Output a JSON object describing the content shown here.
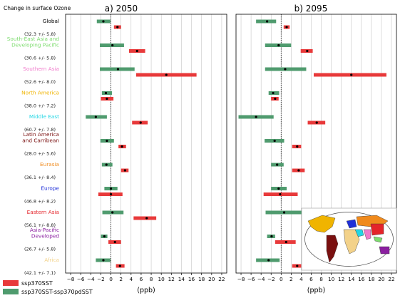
{
  "figure": {
    "header": "Change in surface Ozone",
    "panel_titles": [
      "a) 2050",
      "b) 2095"
    ]
  },
  "colors": {
    "ssp370SST": "#e8393a",
    "diff": "#4f9b6e",
    "zero_line": "#111111",
    "grid": "#bbbbbb"
  },
  "legend": [
    {
      "label": "ssp370SST",
      "color": "#e8393a"
    },
    {
      "label": "ssp370SST-ssp370pdSST",
      "color": "#4f9b6e"
    }
  ],
  "regions": [
    {
      "name": "Global",
      "color": "#000000",
      "baseline": "(32.3 +/- 5.8)"
    },
    {
      "name": "South-East Asia and\nDeveloping Pacific",
      "color": "#7ddc6e",
      "baseline": "(30.6 +/- 5.8)"
    },
    {
      "name": "Southern Asia",
      "color": "#f07acb",
      "baseline": "(52.6 +/- 8.0)"
    },
    {
      "name": "North America",
      "color": "#f0b400",
      "baseline": "(38.0 +/- 7.2)"
    },
    {
      "name": "Middle East",
      "color": "#22d6e4",
      "baseline": "(60.7 +/- 7.8)"
    },
    {
      "name": "Latin America\nand Carribean",
      "color": "#7a1010",
      "baseline": "(28.0 +/- 5.6)"
    },
    {
      "name": "Eurasia",
      "color": "#f08a1c",
      "baseline": "(36.1 +/- 8.4)"
    },
    {
      "name": "Europe",
      "color": "#1f2fd8",
      "baseline": "(46.8 +/- 8.2)"
    },
    {
      "name": "Eastern Asia",
      "color": "#e4242a",
      "baseline": "(56.1 +/- 8.8)"
    },
    {
      "name": "Asia-Pacific\nDeveloped",
      "color": "#8b1fa0",
      "baseline": "(26.7 +/- 5.8)"
    },
    {
      "name": "Africa",
      "color": "#f3d28a",
      "baseline": "(42.1 +/- 7.1)"
    }
  ],
  "chart_data": {
    "type": "errorbar-ranges",
    "xlabel": "(ppb)",
    "xlim": [
      -9,
      23
    ],
    "xticks": [
      -8,
      -6,
      -4,
      -2,
      0,
      2,
      4,
      6,
      8,
      10,
      12,
      14,
      16,
      18,
      20,
      22
    ],
    "panels": [
      {
        "title": "a) 2050",
        "series": [
          {
            "name": "ssp370SST",
            "values": [
              {
                "region": "Global",
                "low": 0.6,
                "mean": 1.3,
                "high": 2.0
              },
              {
                "region": "South-East Asia and Developing Pacific",
                "low": 3.6,
                "mean": 5.2,
                "high": 6.8
              },
              {
                "region": "Southern Asia",
                "low": 5.0,
                "mean": 11.0,
                "high": 17.0
              },
              {
                "region": "North America",
                "low": -2.0,
                "mean": -0.8,
                "high": 0.5
              },
              {
                "region": "Middle East",
                "low": 4.2,
                "mean": 5.9,
                "high": 7.3
              },
              {
                "region": "Latin America and Carribean",
                "low": 1.5,
                "mean": 2.2,
                "high": 3.0
              },
              {
                "region": "Eurasia",
                "low": 2.0,
                "mean": 2.8,
                "high": 3.5
              },
              {
                "region": "Europe",
                "low": -2.5,
                "mean": 0.0,
                "high": 2.3
              },
              {
                "region": "Eastern Asia",
                "low": 4.5,
                "mean": 7.1,
                "high": 9.0
              },
              {
                "region": "Asia-Pacific Developed",
                "low": -0.5,
                "mean": 0.8,
                "high": 2.0
              },
              {
                "region": "Africa",
                "low": 1.0,
                "mean": 1.8,
                "high": 2.7
              }
            ]
          },
          {
            "name": "ssp370SST-ssp370pdSST",
            "values": [
              {
                "region": "Global",
                "low": -2.8,
                "mean": -1.5,
                "high": -0.1
              },
              {
                "region": "South-East Asia and Developing Pacific",
                "low": -2.2,
                "mean": 0.3,
                "high": 2.6
              },
              {
                "region": "Southern Asia",
                "low": -2.2,
                "mean": 1.4,
                "high": 4.7
              },
              {
                "region": "North America",
                "low": -1.8,
                "mean": -1.0,
                "high": 0.2
              },
              {
                "region": "Middle East",
                "low": -5.0,
                "mean": -3.0,
                "high": -0.8
              },
              {
                "region": "Latin America and Carribean",
                "low": -2.1,
                "mean": -0.8,
                "high": 0.6
              },
              {
                "region": "Eurasia",
                "low": -1.8,
                "mean": -0.9,
                "high": 0.3
              },
              {
                "region": "Europe",
                "low": -1.3,
                "mean": 0.0,
                "high": 1.3
              },
              {
                "region": "Eastern Asia",
                "low": -1.7,
                "mean": 0.3,
                "high": 2.5
              },
              {
                "region": "Asia-Pacific Developed",
                "low": -2.0,
                "mean": -1.3,
                "high": -0.7
              },
              {
                "region": "Africa",
                "low": -3.0,
                "mean": -1.5,
                "high": -0.1
              }
            ]
          }
        ]
      },
      {
        "title": "b) 2095",
        "series": [
          {
            "name": "ssp370SST",
            "values": [
              {
                "region": "Global",
                "low": 0.5,
                "mean": 1.1,
                "high": 1.7
              },
              {
                "region": "South-East Asia and Developing Pacific",
                "low": 3.9,
                "mean": 5.2,
                "high": 6.3
              },
              {
                "region": "Southern Asia",
                "low": 6.5,
                "mean": 14.0,
                "high": 21.0
              },
              {
                "region": "North America",
                "low": -2.0,
                "mean": -1.2,
                "high": -0.5
              },
              {
                "region": "Middle East",
                "low": 5.3,
                "mean": 7.1,
                "high": 8.8
              },
              {
                "region": "Latin America and Carribean",
                "low": 2.2,
                "mean": 3.2,
                "high": 4.0
              },
              {
                "region": "Eurasia",
                "low": 2.2,
                "mean": 3.5,
                "high": 4.7
              },
              {
                "region": "Europe",
                "low": -3.5,
                "mean": -0.2,
                "high": 3.3
              },
              {
                "region": "Eastern Asia",
                "low": 4.3,
                "mean": 5.9,
                "high": 7.5
              },
              {
                "region": "Asia-Pacific Developed",
                "low": -1.2,
                "mean": 1.0,
                "high": 2.9
              },
              {
                "region": "Africa",
                "low": 2.2,
                "mean": 3.2,
                "high": 4.0
              }
            ]
          },
          {
            "name": "ssp370SST-ssp370pdSST",
            "values": [
              {
                "region": "Global",
                "low": -5.0,
                "mean": -2.8,
                "high": -1.0
              },
              {
                "region": "South-East Asia and Developing Pacific",
                "low": -3.2,
                "mean": -0.5,
                "high": 2.0
              },
              {
                "region": "Southern Asia",
                "low": -3.2,
                "mean": 0.8,
                "high": 5.0
              },
              {
                "region": "North America",
                "low": -2.5,
                "mean": -1.6,
                "high": -0.4
              },
              {
                "region": "Middle East",
                "low": -8.5,
                "mean": -5.0,
                "high": -1.5
              },
              {
                "region": "Latin America and Carribean",
                "low": -3.3,
                "mean": -1.3,
                "high": 0.6
              },
              {
                "region": "Eurasia",
                "low": -2.0,
                "mean": -0.8,
                "high": 0.5
              },
              {
                "region": "Europe",
                "low": -2.0,
                "mean": -0.5,
                "high": 1.1
              },
              {
                "region": "Eastern Asia",
                "low": -3.1,
                "mean": 0.6,
                "high": 4.6
              },
              {
                "region": "Asia-Pacific Developed",
                "low": -2.8,
                "mean": -1.9,
                "high": -1.2
              },
              {
                "region": "Africa",
                "low": -5.0,
                "mean": -2.5,
                "high": -0.3
              }
            ]
          }
        ]
      }
    ]
  }
}
